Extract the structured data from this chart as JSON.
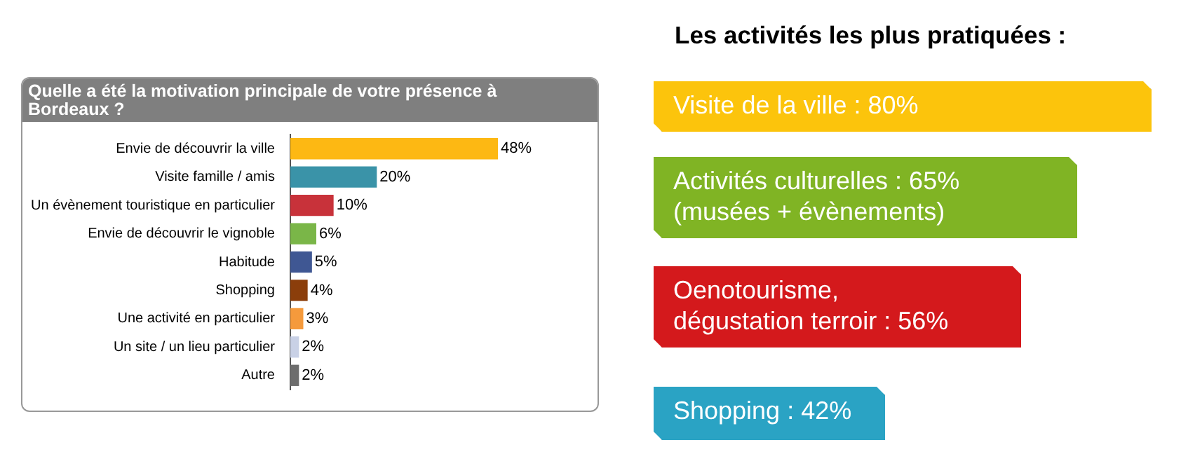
{
  "chart_data": [
    {
      "type": "bar",
      "orientation": "horizontal",
      "title": "Quelle a été la motivation principale de votre présence à Bordeaux ?",
      "categories": [
        "Envie de découvrir la ville",
        "Visite famille / amis",
        "Un évènement touristique en particulier",
        "Envie de découvrir le vignoble",
        "Habitude",
        "Shopping",
        "Une activité en particulier",
        "Un site / un lieu particulier",
        "Autre"
      ],
      "values": [
        48,
        20,
        10,
        6,
        5,
        4,
        3,
        2,
        2
      ],
      "value_labels": [
        "48%",
        "20%",
        "10%",
        "6%",
        "5%",
        "4%",
        "3%",
        "2%",
        "2%"
      ],
      "colors": [
        "#fdb813",
        "#3a93a8",
        "#c8323a",
        "#7ab648",
        "#3f5793",
        "#8b3e0b",
        "#f59a3c",
        "#c9d1e6",
        "#6d6d6d"
      ],
      "tick_labels": "y",
      "legend": false
    },
    {
      "type": "other",
      "title": "Les activités les plus pratiquées :",
      "annotations": [
        "Visite de la ville : 80%",
        "Activités culturelles : 65% (musées + évènements)",
        "Oenotourisme, dégustation terroir : 56%",
        "Shopping : 42%"
      ],
      "colors": [
        "#fcc40c",
        "#80b424",
        "#d4191c",
        "#2aa3c4"
      ]
    }
  ]
}
